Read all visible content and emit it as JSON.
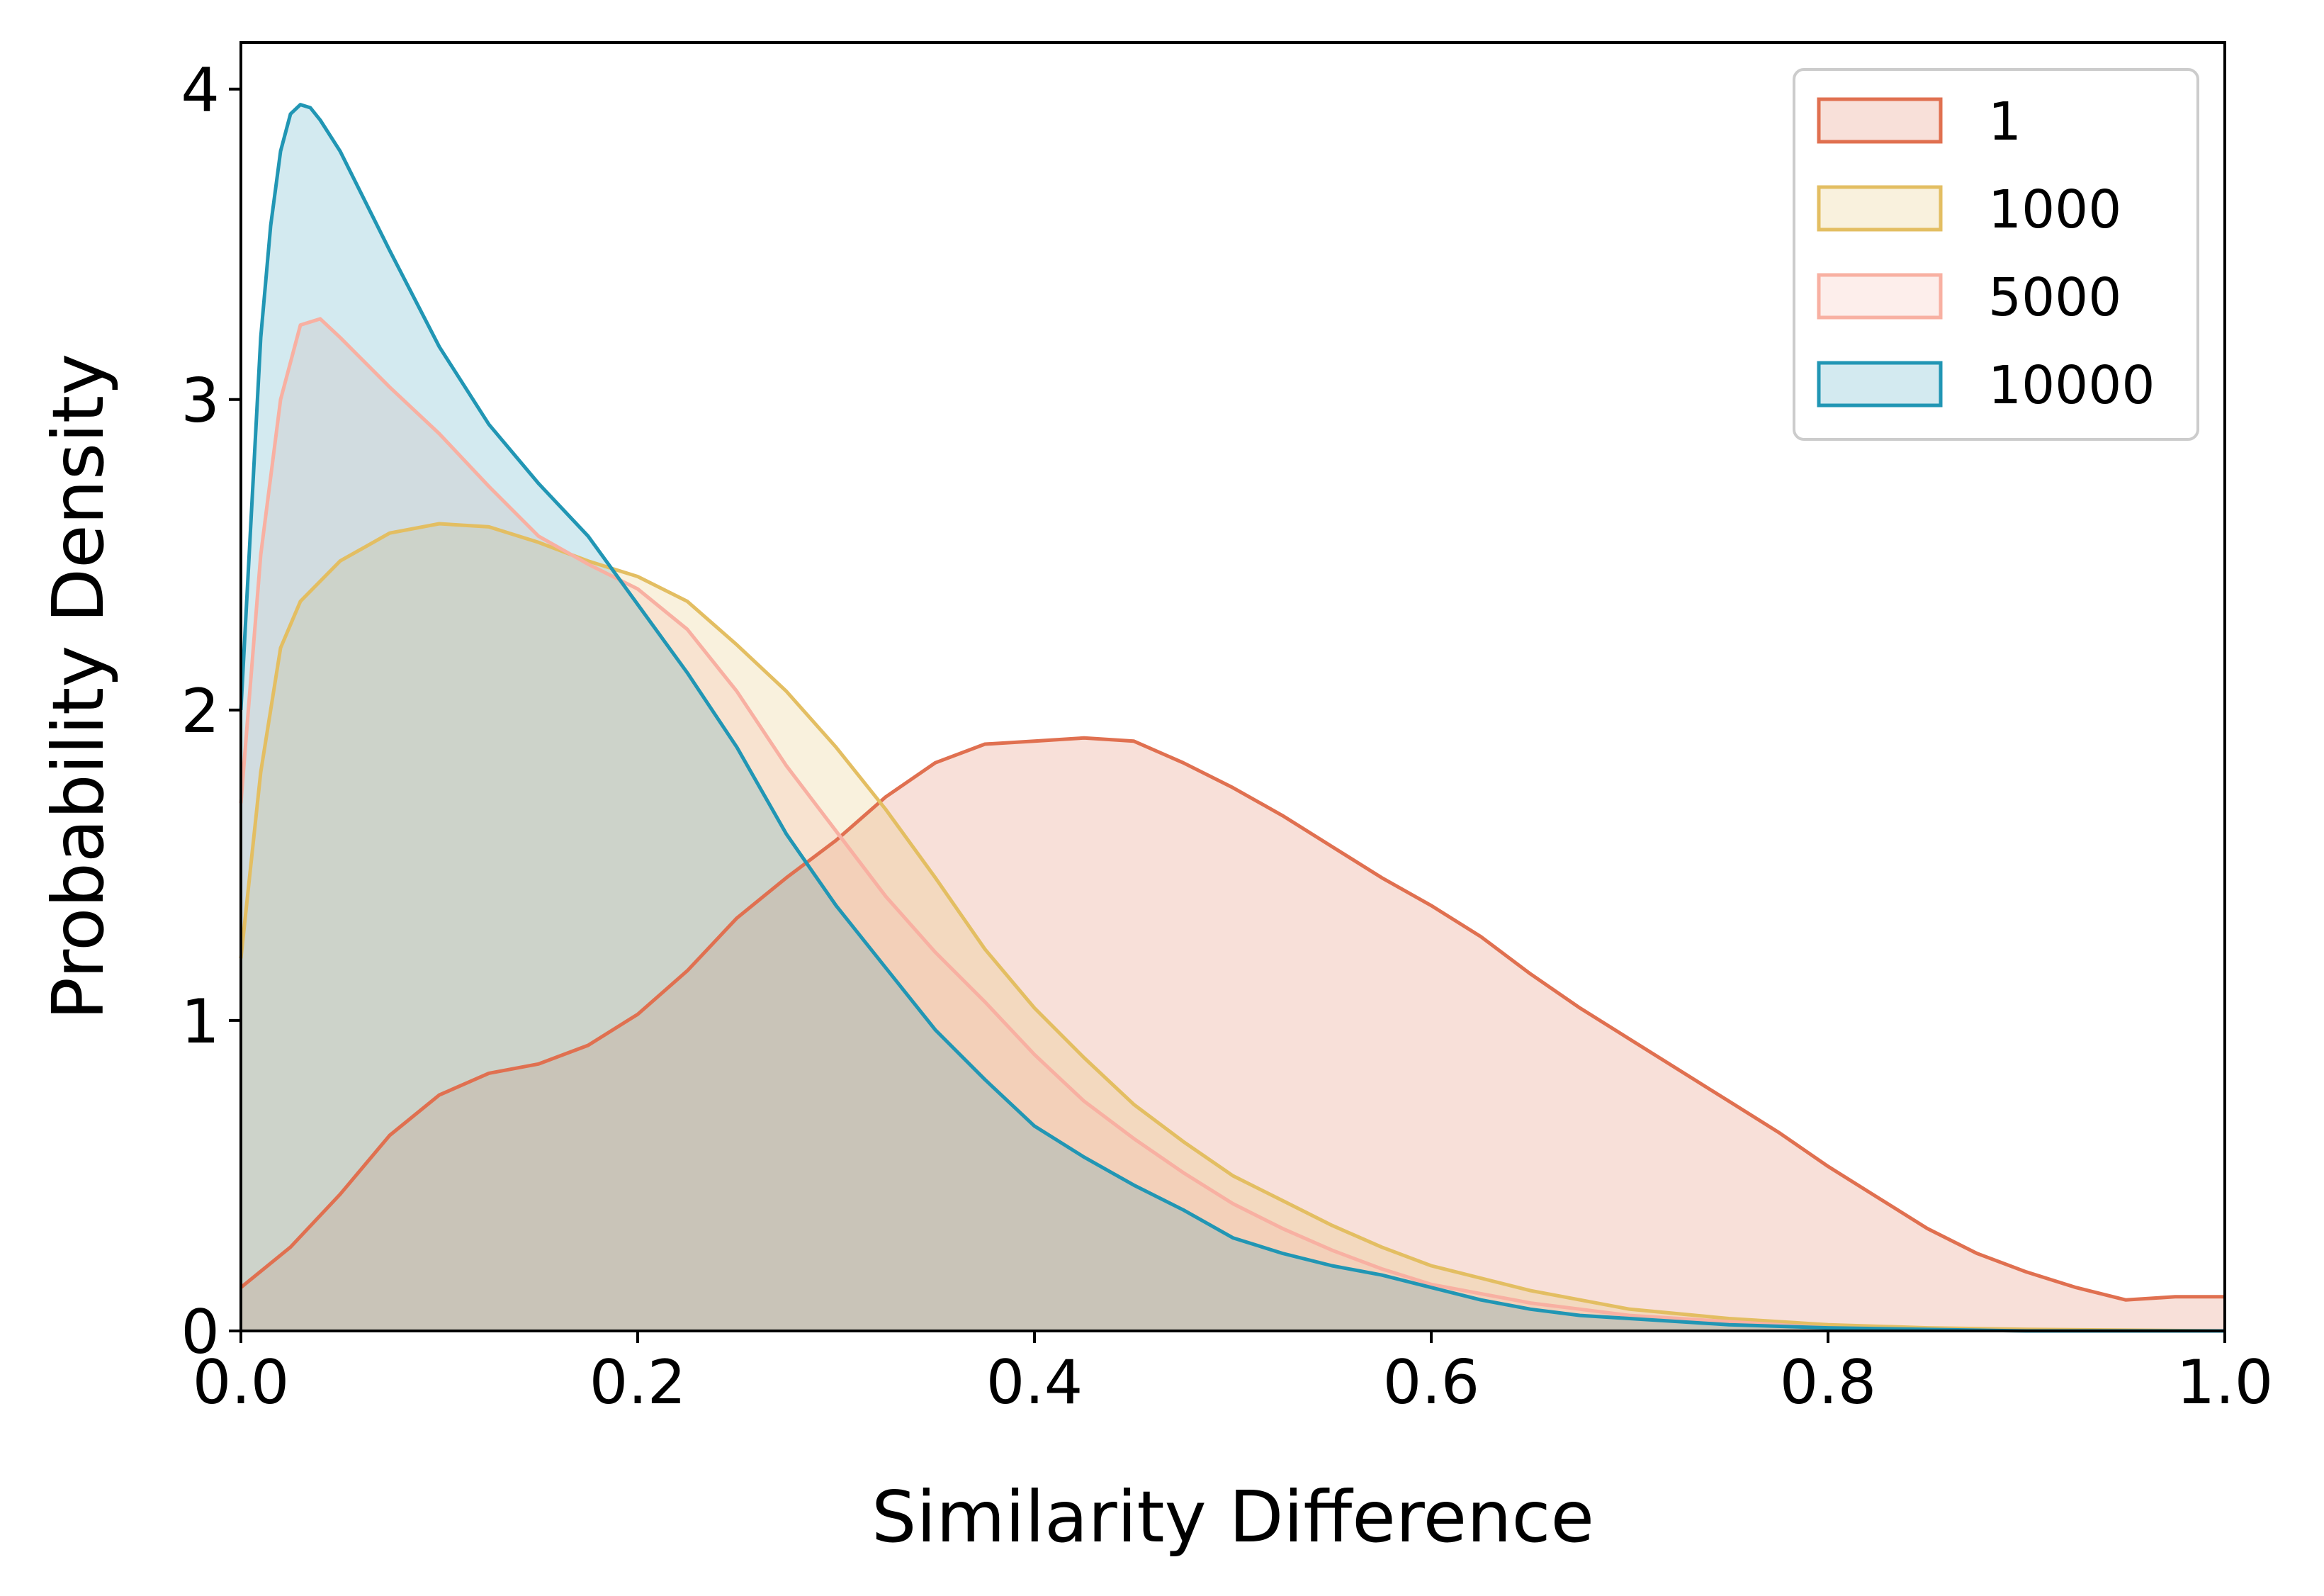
{
  "chart_data": {
    "type": "area",
    "title": "",
    "xlabel": "Similarity Difference",
    "ylabel": "Probability Density",
    "xlim": [
      0.0,
      1.0
    ],
    "ylim": [
      0,
      4.15
    ],
    "x_ticks": [
      "0.0",
      "0.2",
      "0.4",
      "0.6",
      "0.8",
      "1.0"
    ],
    "y_ticks": [
      "0",
      "1",
      "2",
      "3",
      "4"
    ],
    "grid": false,
    "legend_position": "upper right",
    "series": [
      {
        "name": "1",
        "color": "#E07050",
        "fill_opacity": 0.22,
        "points": [
          [
            0,
            0.14
          ],
          [
            0.025,
            0.27
          ],
          [
            0.05,
            0.44
          ],
          [
            0.075,
            0.63
          ],
          [
            0.1,
            0.76
          ],
          [
            0.125,
            0.83
          ],
          [
            0.15,
            0.86
          ],
          [
            0.175,
            0.92
          ],
          [
            0.2,
            1.02
          ],
          [
            0.225,
            1.16
          ],
          [
            0.25,
            1.33
          ],
          [
            0.275,
            1.46
          ],
          [
            0.3,
            1.58
          ],
          [
            0.325,
            1.72
          ],
          [
            0.35,
            1.83
          ],
          [
            0.375,
            1.89
          ],
          [
            0.4,
            1.9
          ],
          [
            0.425,
            1.91
          ],
          [
            0.45,
            1.9
          ],
          [
            0.475,
            1.83
          ],
          [
            0.5,
            1.75
          ],
          [
            0.525,
            1.66
          ],
          [
            0.55,
            1.56
          ],
          [
            0.575,
            1.46
          ],
          [
            0.6,
            1.37
          ],
          [
            0.625,
            1.27
          ],
          [
            0.65,
            1.15
          ],
          [
            0.675,
            1.04
          ],
          [
            0.7,
            0.94
          ],
          [
            0.725,
            0.84
          ],
          [
            0.75,
            0.74
          ],
          [
            0.775,
            0.64
          ],
          [
            0.8,
            0.53
          ],
          [
            0.825,
            0.43
          ],
          [
            0.85,
            0.33
          ],
          [
            0.875,
            0.25
          ],
          [
            0.9,
            0.19
          ],
          [
            0.925,
            0.14
          ],
          [
            0.95,
            0.1
          ],
          [
            0.975,
            0.11
          ],
          [
            1.0,
            0.11
          ]
        ]
      },
      {
        "name": "1000",
        "color": "#E3BE62",
        "fill_opacity": 0.22,
        "points": [
          [
            0,
            1.2
          ],
          [
            0.01,
            1.8
          ],
          [
            0.02,
            2.2
          ],
          [
            0.03,
            2.35
          ],
          [
            0.05,
            2.48
          ],
          [
            0.075,
            2.57
          ],
          [
            0.1,
            2.6
          ],
          [
            0.125,
            2.59
          ],
          [
            0.15,
            2.54
          ],
          [
            0.175,
            2.48
          ],
          [
            0.2,
            2.43
          ],
          [
            0.225,
            2.35
          ],
          [
            0.25,
            2.21
          ],
          [
            0.275,
            2.06
          ],
          [
            0.3,
            1.88
          ],
          [
            0.325,
            1.68
          ],
          [
            0.35,
            1.46
          ],
          [
            0.375,
            1.23
          ],
          [
            0.4,
            1.04
          ],
          [
            0.425,
            0.88
          ],
          [
            0.45,
            0.73
          ],
          [
            0.475,
            0.61
          ],
          [
            0.5,
            0.5
          ],
          [
            0.525,
            0.42
          ],
          [
            0.55,
            0.34
          ],
          [
            0.575,
            0.27
          ],
          [
            0.6,
            0.21
          ],
          [
            0.625,
            0.17
          ],
          [
            0.65,
            0.13
          ],
          [
            0.675,
            0.1
          ],
          [
            0.7,
            0.07
          ],
          [
            0.75,
            0.04
          ],
          [
            0.8,
            0.02
          ],
          [
            0.85,
            0.01
          ],
          [
            0.9,
            0.005
          ],
          [
            1.0,
            0.0
          ]
        ]
      },
      {
        "name": "5000",
        "color": "#F8B0A2",
        "fill_opacity": 0.22,
        "points": [
          [
            0,
            1.7
          ],
          [
            0.01,
            2.5
          ],
          [
            0.02,
            3.0
          ],
          [
            0.03,
            3.24
          ],
          [
            0.04,
            3.26
          ],
          [
            0.05,
            3.2
          ],
          [
            0.075,
            3.04
          ],
          [
            0.1,
            2.89
          ],
          [
            0.125,
            2.72
          ],
          [
            0.15,
            2.56
          ],
          [
            0.175,
            2.47
          ],
          [
            0.2,
            2.39
          ],
          [
            0.225,
            2.26
          ],
          [
            0.25,
            2.06
          ],
          [
            0.275,
            1.82
          ],
          [
            0.3,
            1.61
          ],
          [
            0.325,
            1.4
          ],
          [
            0.35,
            1.22
          ],
          [
            0.375,
            1.06
          ],
          [
            0.4,
            0.89
          ],
          [
            0.425,
            0.74
          ],
          [
            0.45,
            0.62
          ],
          [
            0.475,
            0.51
          ],
          [
            0.5,
            0.41
          ],
          [
            0.525,
            0.33
          ],
          [
            0.55,
            0.26
          ],
          [
            0.575,
            0.2
          ],
          [
            0.6,
            0.15
          ],
          [
            0.625,
            0.12
          ],
          [
            0.65,
            0.09
          ],
          [
            0.675,
            0.07
          ],
          [
            0.7,
            0.05
          ],
          [
            0.75,
            0.03
          ],
          [
            0.8,
            0.01
          ],
          [
            0.9,
            0.0
          ],
          [
            1.0,
            0.0
          ]
        ]
      },
      {
        "name": "10000",
        "color": "#2196B4",
        "fill_opacity": 0.2,
        "points": [
          [
            0,
            2.0
          ],
          [
            0.01,
            3.2
          ],
          [
            0.015,
            3.56
          ],
          [
            0.02,
            3.8
          ],
          [
            0.025,
            3.92
          ],
          [
            0.03,
            3.95
          ],
          [
            0.035,
            3.94
          ],
          [
            0.04,
            3.9
          ],
          [
            0.05,
            3.8
          ],
          [
            0.075,
            3.48
          ],
          [
            0.1,
            3.17
          ],
          [
            0.125,
            2.92
          ],
          [
            0.15,
            2.73
          ],
          [
            0.175,
            2.56
          ],
          [
            0.2,
            2.34
          ],
          [
            0.225,
            2.12
          ],
          [
            0.25,
            1.88
          ],
          [
            0.275,
            1.6
          ],
          [
            0.3,
            1.37
          ],
          [
            0.325,
            1.17
          ],
          [
            0.35,
            0.97
          ],
          [
            0.375,
            0.81
          ],
          [
            0.4,
            0.66
          ],
          [
            0.425,
            0.56
          ],
          [
            0.45,
            0.47
          ],
          [
            0.475,
            0.39
          ],
          [
            0.5,
            0.3
          ],
          [
            0.525,
            0.25
          ],
          [
            0.55,
            0.21
          ],
          [
            0.575,
            0.18
          ],
          [
            0.6,
            0.14
          ],
          [
            0.625,
            0.1
          ],
          [
            0.65,
            0.07
          ],
          [
            0.675,
            0.05
          ],
          [
            0.7,
            0.04
          ],
          [
            0.75,
            0.02
          ],
          [
            0.8,
            0.01
          ],
          [
            0.9,
            0.0
          ],
          [
            1.0,
            0.0
          ]
        ]
      }
    ]
  }
}
